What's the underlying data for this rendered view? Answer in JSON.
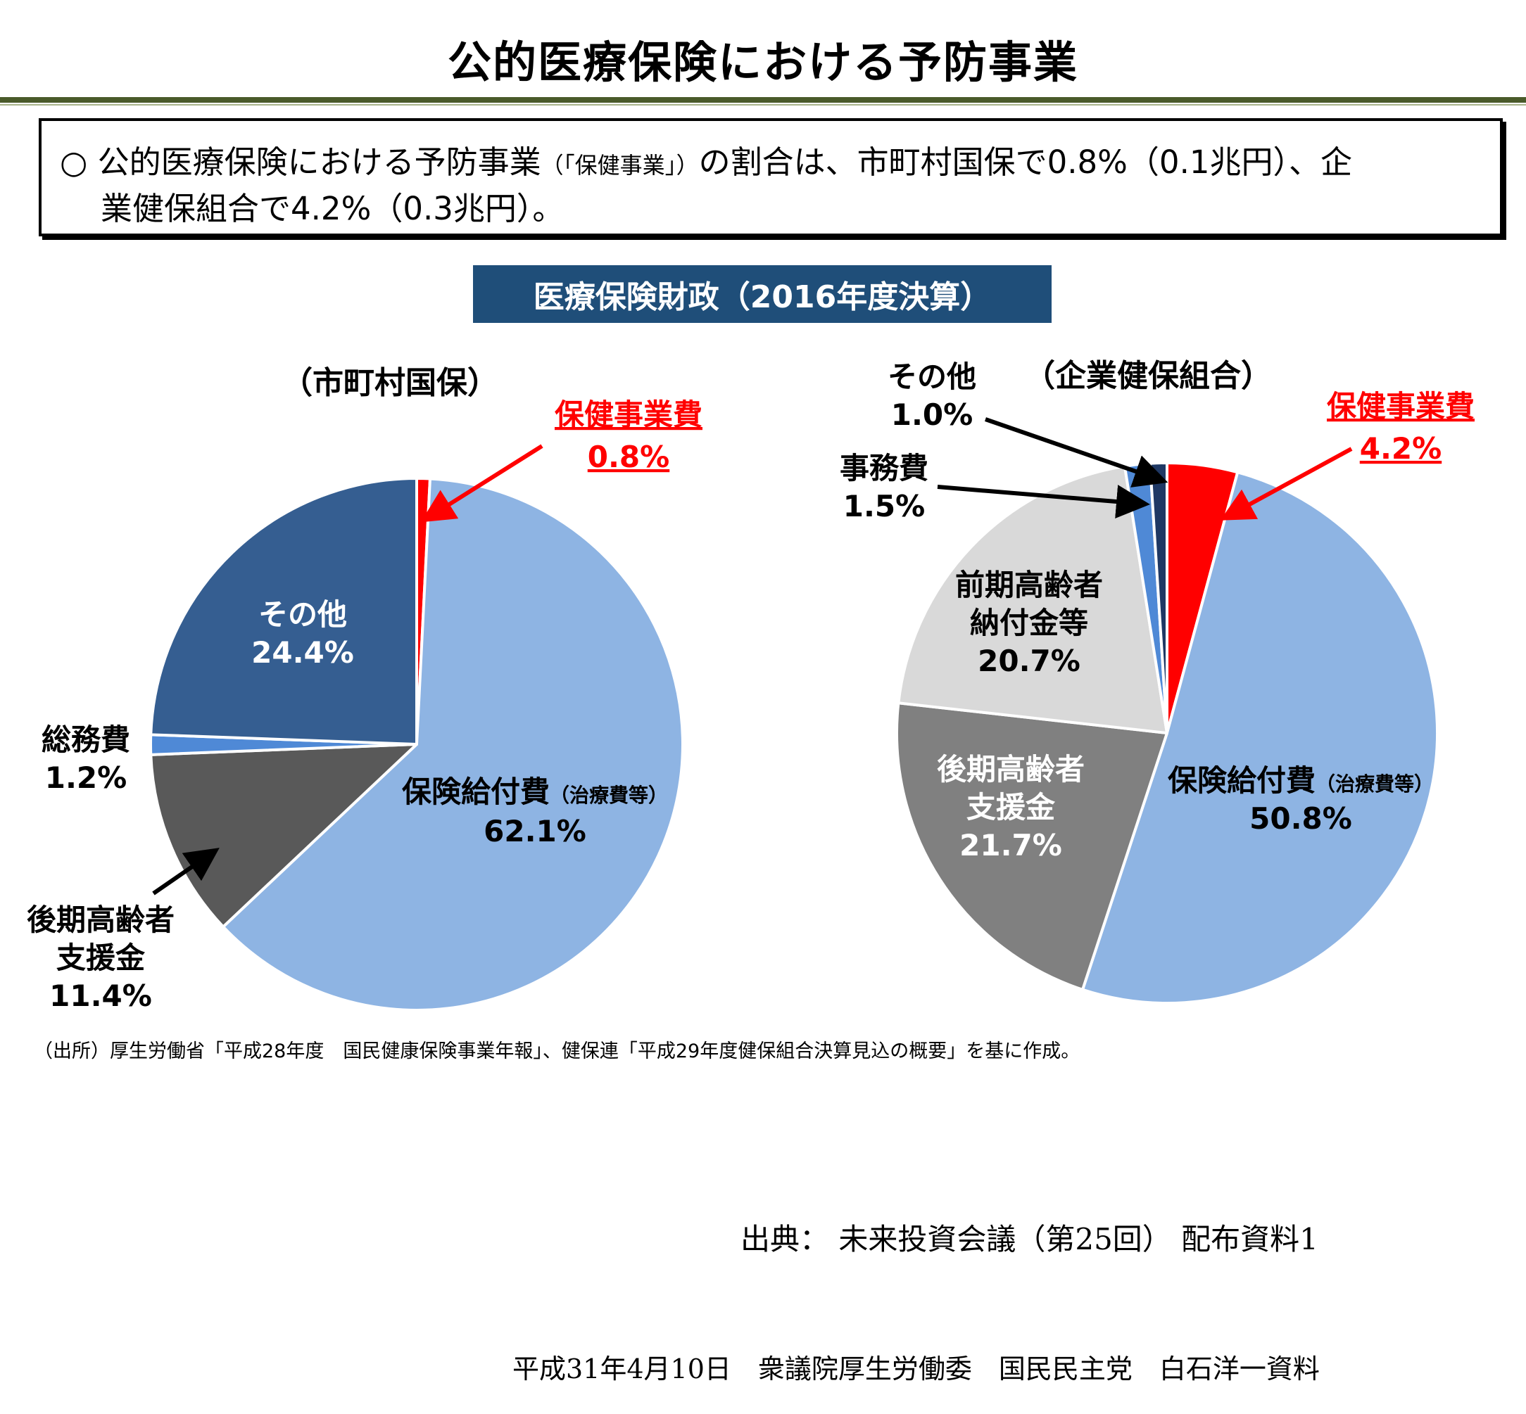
{
  "title": "公的医療保険における予防事業",
  "summary": {
    "bullet": "○",
    "line1_a": "公的医療保険における予防事業",
    "line1_paren": "（「保健事業」）",
    "line1_b": "の割合は、市町村国保で0.8%（0.1兆円）、企",
    "line2": "業健保組合で4.2%（0.3兆円）。"
  },
  "finance_title": "医療保険財政（2016年度決算）",
  "source_note": "（出所）厚生労働省「平成28年度　国民健康保険事業年報」、健保連「平成29年度健保組合決算見込の概要」を基に作成。",
  "citation": "出典：  未来投資会議（第25回）  配布資料1",
  "footer": "平成31年4月10日　衆議院厚生労働委　国民民主党　白石洋一資料",
  "colors": {
    "title_rule": "#4a5a2a",
    "banner": "#1f4e79",
    "highlight": "#ff0000",
    "benefit": "#8eb4e3",
    "other": "#355e91",
    "admin": "#4f89d6",
    "late_elderly": "#595959",
    "late_elderly_corp": "#808080",
    "early_elderly": "#d9d9d9"
  },
  "chart_data": [
    {
      "type": "pie",
      "title": "（市町村国保）",
      "start": "top",
      "direction": "clockwise",
      "slices": [
        {
          "label": "保健事業費",
          "value": 0.8,
          "text": "0.8%",
          "color": "#ff0000"
        },
        {
          "label": "保険給付費（治療費等）",
          "value": 62.1,
          "text": "62.1%",
          "color": "#8eb4e3"
        },
        {
          "label": "後期高齢者支援金",
          "value": 11.4,
          "text": "11.4%",
          "color": "#595959"
        },
        {
          "label": "総務費",
          "value": 1.2,
          "text": "1.2%",
          "color": "#4f89d6"
        },
        {
          "label": "その他",
          "value": 24.4,
          "text": "24.4%",
          "color": "#355e91"
        }
      ]
    },
    {
      "type": "pie",
      "title": "（企業健保組合）",
      "start": "top",
      "direction": "clockwise",
      "slices": [
        {
          "label": "保健事業費",
          "value": 4.2,
          "text": "4.2%",
          "color": "#ff0000"
        },
        {
          "label": "保険給付費（治療費等）",
          "value": 50.8,
          "text": "50.8%",
          "color": "#8eb4e3"
        },
        {
          "label": "後期高齢者支援金",
          "value": 21.7,
          "text": "21.7%",
          "color": "#808080"
        },
        {
          "label": "前期高齢者納付金等",
          "value": 20.7,
          "text": "20.7%",
          "color": "#d9d9d9"
        },
        {
          "label": "事務費",
          "value": 1.5,
          "text": "1.5%",
          "color": "#4f89d6"
        },
        {
          "label": "その他",
          "value": 1.0,
          "text": "1.0%",
          "color": "#1f3864"
        }
      ]
    }
  ],
  "labels": {
    "kokuho": {
      "hoken_name": "保健事業費",
      "hoken_pct": "0.8%",
      "sonota_name": "その他",
      "sonota_pct": "24.4%",
      "somu_name": "総務費",
      "somu_pct": "1.2%",
      "kyufu_name": "保険給付費",
      "kyufu_paren": "（治療費等）",
      "kyufu_pct": "62.1%",
      "koki_l1": "後期高齢者",
      "koki_l2": "支援金",
      "koki_pct": "11.4%"
    },
    "kenpo": {
      "sonota_name": "その他",
      "sonota_pct": "1.0%",
      "jimu_name": "事務費",
      "jimu_pct": "1.5%",
      "hoken_name": "保健事業費",
      "hoken_pct": "4.2%",
      "zenki_l1": "前期高齢者",
      "zenki_l2": "納付金等",
      "zenki_pct": "20.7%",
      "koki_l1": "後期高齢者",
      "koki_l2": "支援金",
      "koki_pct": "21.7%",
      "kyufu_name": "保険給付費",
      "kyufu_paren": "（治療費等）",
      "kyufu_pct": "50.8%"
    }
  }
}
